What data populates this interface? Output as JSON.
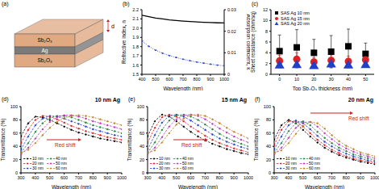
{
  "chart_data": [
    {
      "type": "diagram",
      "title": "(a)",
      "layers": [
        {
          "label": "Sb₂O₃",
          "color": "#e0a982"
        },
        {
          "label": "Ag",
          "color": "#7a7a7a"
        },
        {
          "label": "Sb₂O₃",
          "color": "#e0a982"
        }
      ],
      "annotations": [
        "d"
      ]
    },
    {
      "type": "line",
      "title": "(b)",
      "x_label": "Wavelength (nm)",
      "y_label": "Refractive index, n",
      "y2_label": "Absorption coefficient, k",
      "x": [
        400,
        450,
        500,
        550,
        600,
        650,
        700,
        750,
        800,
        850,
        900,
        950,
        1000
      ],
      "xlim": [
        400,
        1000
      ],
      "xticks": [
        400,
        500,
        600,
        700,
        800,
        900,
        1000
      ],
      "ylim": [
        1.5,
        2.2
      ],
      "yticks": [
        1.5,
        1.6,
        1.7,
        1.8,
        1.9,
        {
          "value": 2,
          "label": "2.0"
        },
        2.1,
        2.2
      ],
      "y2lim": [
        0,
        0.03
      ],
      "y2ticks": [
        0,
        0.01,
        0.02,
        0.03
      ],
      "series": [
        {
          "color": "#000000",
          "line_style": "solid",
          "marker": "none",
          "values": [
            2.14,
            2.125,
            2.11,
            2.1,
            2.09,
            2.083,
            2.077,
            2.072,
            2.068,
            2.064,
            2.061,
            2.058,
            2.056
          ]
        },
        {
          "color": "#2040c8",
          "axis": "y2",
          "line_style": "dotted",
          "marker": "circle",
          "values": [
            0.0155,
            0.013,
            0.0112,
            0.0098,
            0.0087,
            0.0078,
            0.007,
            0.0063,
            0.0057,
            0.0052,
            0.0047,
            0.0043,
            0.004
          ]
        }
      ]
    },
    {
      "type": "scatter",
      "title": "(c)",
      "x_label": "Top Sb₂O₃ thickness (nm)",
      "y_label": "Sheet resistance (ohm/sq)",
      "x": [
        0,
        10,
        20,
        30,
        40,
        50
      ],
      "xlim": [
        -5,
        55
      ],
      "xticks": [
        0,
        10,
        20,
        30,
        40,
        50
      ],
      "ylim": [
        0,
        12
      ],
      "yticks": [
        0,
        2,
        4,
        6,
        8,
        10,
        12
      ],
      "legend": "upper left",
      "series": [
        {
          "name": "SAS Ag 10 nm",
          "color": "#000000",
          "marker": "square",
          "values": [
            4.3,
            5.0,
            4.0,
            4.2,
            5.2,
            3.8
          ],
          "errors": [
            3,
            3.3,
            2.5,
            3,
            3.2,
            2
          ]
        },
        {
          "name": "SAS Ag 15 nm",
          "color": "#e02020",
          "marker": "circle",
          "values": [
            2.5,
            2.8,
            2.3,
            2.6,
            2.4,
            2.7
          ],
          "errors": [
            1,
            1.2,
            0.8,
            1,
            1,
            0.9
          ]
        },
        {
          "name": "SAS Ag 20 nm",
          "color": "#2040c8",
          "marker": "triangle",
          "values": [
            1.6,
            1.7,
            1.5,
            1.8,
            1.6,
            1.7
          ],
          "errors": [
            0.4,
            0.5,
            0.3,
            0.5,
            0.4,
            0.4
          ]
        }
      ]
    },
    {
      "type": "line",
      "title": "(d)",
      "annotations": [
        "10 nm Ag",
        "Red shift"
      ],
      "x_label": "Wavelength (nm)",
      "y_label": "Transmittance (%)",
      "x": [
        300,
        350,
        400,
        450,
        500,
        550,
        600,
        650,
        700,
        750,
        800,
        850,
        900,
        950,
        1000
      ],
      "xlim": [
        300,
        1000
      ],
      "xticks": [
        300,
        400,
        500,
        600,
        700,
        800,
        900,
        1000
      ],
      "ylim": [
        0,
        100
      ],
      "yticks": [
        0,
        20,
        40,
        60,
        80,
        100
      ],
      "legend": "lower left",
      "series": [
        {
          "name": "10 nm",
          "color": "#000000",
          "line_style": "dashed",
          "marker": "circle",
          "values": [
            55,
            75,
            85,
            84,
            80,
            75,
            70,
            65,
            61,
            58,
            55,
            52,
            50,
            48,
            46
          ]
        },
        {
          "name": "20 nm",
          "color": "#e02020",
          "line_style": "dashed",
          "marker": "circle",
          "values": [
            45,
            65,
            80,
            86,
            85,
            81,
            76,
            71,
            67,
            63,
            60,
            57,
            54,
            52,
            50
          ]
        },
        {
          "name": "30 nm",
          "color": "#2040d0",
          "line_style": "dashed",
          "marker": "circle",
          "values": [
            35,
            55,
            72,
            82,
            86,
            85,
            82,
            78,
            74,
            70,
            66,
            63,
            60,
            57,
            55
          ]
        },
        {
          "name": "40 nm",
          "color": "#208040",
          "line_style": "dashed",
          "marker": "circle",
          "values": [
            30,
            45,
            62,
            75,
            83,
            86,
            86,
            84,
            80,
            76,
            72,
            69,
            66,
            63,
            60
          ]
        },
        {
          "name": "50 nm",
          "color": "#c030c0",
          "line_style": "dashed",
          "marker": "circle",
          "values": [
            28,
            38,
            52,
            66,
            77,
            84,
            87,
            87,
            85,
            82,
            78,
            75,
            72,
            69,
            66
          ]
        },
        {
          "name": "60 nm",
          "color": "#c08020",
          "line_style": "dashed",
          "marker": "circle",
          "values": [
            30,
            35,
            45,
            57,
            68,
            77,
            83,
            86,
            87,
            86,
            84,
            81,
            78,
            75,
            72
          ]
        }
      ]
    },
    {
      "type": "line",
      "title": "(e)",
      "annotations": [
        "15 nm Ag",
        "Red shift"
      ],
      "x_label": "Wavelength (nm)",
      "y_label": "Transmittance (%)",
      "x": [
        300,
        350,
        400,
        450,
        500,
        550,
        600,
        650,
        700,
        750,
        800,
        850,
        900,
        950,
        1000
      ],
      "xlim": [
        300,
        1000
      ],
      "xticks": [
        300,
        400,
        500,
        600,
        700,
        800,
        900,
        1000
      ],
      "ylim": [
        0,
        100
      ],
      "yticks": [
        0,
        20,
        40,
        60,
        80,
        100
      ],
      "legend": "lower left",
      "series": [
        {
          "name": "10 nm",
          "color": "#000000",
          "line_style": "dashed",
          "marker": "circle",
          "values": [
            55,
            78,
            88,
            85,
            78,
            70,
            62,
            55,
            49,
            44,
            40,
            36,
            33,
            30,
            28
          ]
        },
        {
          "name": "20 nm",
          "color": "#e02020",
          "line_style": "dashed",
          "marker": "circle",
          "values": [
            45,
            68,
            84,
            88,
            85,
            78,
            70,
            63,
            56,
            50,
            45,
            41,
            37,
            34,
            31
          ]
        },
        {
          "name": "30 nm",
          "color": "#2040d0",
          "line_style": "dashed",
          "marker": "circle",
          "values": [
            35,
            57,
            76,
            86,
            88,
            85,
            79,
            72,
            65,
            58,
            52,
            47,
            43,
            39,
            36
          ]
        },
        {
          "name": "40 nm",
          "color": "#208040",
          "line_style": "dashed",
          "marker": "circle",
          "values": [
            30,
            46,
            65,
            79,
            87,
            88,
            85,
            80,
            73,
            66,
            59,
            53,
            48,
            44,
            40
          ]
        },
        {
          "name": "50 nm",
          "color": "#c030c0",
          "line_style": "dashed",
          "marker": "circle",
          "values": [
            28,
            38,
            54,
            70,
            81,
            87,
            88,
            86,
            81,
            74,
            67,
            61,
            55,
            50,
            46
          ]
        },
        {
          "name": "60 nm",
          "color": "#c08020",
          "line_style": "dashed",
          "marker": "circle",
          "values": [
            30,
            34,
            46,
            60,
            73,
            82,
            87,
            88,
            86,
            81,
            75,
            68,
            62,
            57,
            52
          ]
        }
      ]
    },
    {
      "type": "line",
      "title": "(f)",
      "annotations": [
        "20 nm Ag",
        "Red shift"
      ],
      "x_label": "Wavelength (nm)",
      "y_label": "Transmittance (%)",
      "x": [
        300,
        350,
        400,
        450,
        500,
        550,
        600,
        650,
        700,
        750,
        800,
        850,
        900,
        950,
        1000
      ],
      "xlim": [
        300,
        1000
      ],
      "xticks": [
        300,
        400,
        500,
        600,
        700,
        800,
        900,
        1000
      ],
      "ylim": [
        0,
        100
      ],
      "yticks": [
        0,
        20,
        40,
        60,
        80,
        100
      ],
      "legend": "lower left",
      "series": [
        {
          "name": "10 nm",
          "color": "#000000",
          "line_style": "dashed",
          "marker": "circle",
          "values": [
            50,
            72,
            80,
            75,
            65,
            55,
            46,
            38,
            32,
            27,
            23,
            20,
            17,
            15,
            13
          ]
        },
        {
          "name": "20 nm",
          "color": "#e02020",
          "line_style": "dashed",
          "marker": "circle",
          "values": [
            42,
            65,
            78,
            78,
            70,
            60,
            50,
            42,
            35,
            30,
            25,
            22,
            19,
            17,
            15
          ]
        },
        {
          "name": "30 nm",
          "color": "#2040d0",
          "line_style": "dashed",
          "marker": "circle",
          "values": [
            35,
            55,
            72,
            79,
            75,
            66,
            56,
            47,
            40,
            34,
            29,
            25,
            22,
            19,
            17
          ]
        },
        {
          "name": "40 nm",
          "color": "#208040",
          "line_style": "dashed",
          "marker": "circle",
          "values": [
            30,
            45,
            63,
            75,
            78,
            72,
            62,
            53,
            45,
            38,
            33,
            28,
            25,
            22,
            19
          ]
        },
        {
          "name": "50 nm",
          "color": "#c030c0",
          "line_style": "dashed",
          "marker": "circle",
          "values": [
            28,
            38,
            53,
            68,
            76,
            77,
            70,
            60,
            51,
            43,
            37,
            32,
            28,
            25,
            22
          ]
        },
        {
          "name": "60 nm",
          "color": "#c08020",
          "line_style": "dashed",
          "marker": "circle",
          "values": [
            30,
            34,
            45,
            59,
            71,
            77,
            75,
            67,
            57,
            48,
            41,
            36,
            31,
            28,
            25
          ]
        }
      ]
    }
  ]
}
